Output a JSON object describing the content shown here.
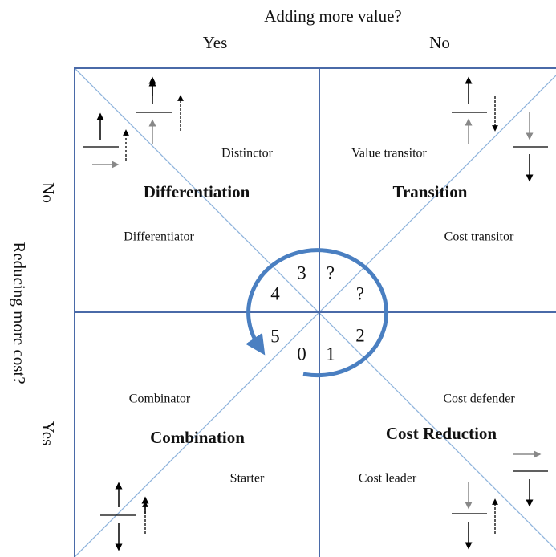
{
  "header": {
    "title": "Adding more value?",
    "columns": [
      "Yes",
      "No"
    ]
  },
  "side": {
    "title": "Reducing more cost?",
    "rows": [
      "No",
      "Yes"
    ]
  },
  "quadrants": [
    {
      "name": "Differentiation",
      "labels": [
        "Distinctor",
        "Differentiator"
      ]
    },
    {
      "name": "Transition",
      "labels": [
        "Value transitor",
        "Cost transitor"
      ]
    },
    {
      "name": "Combination",
      "labels": [
        "Combinator",
        "Starter"
      ]
    },
    {
      "name": "Cost Reduction",
      "labels": [
        "Cost defender",
        "Cost leader"
      ]
    }
  ],
  "center": {
    "segments": [
      "3",
      "?",
      "?",
      "4",
      "5",
      "0",
      "1",
      "2"
    ]
  }
}
